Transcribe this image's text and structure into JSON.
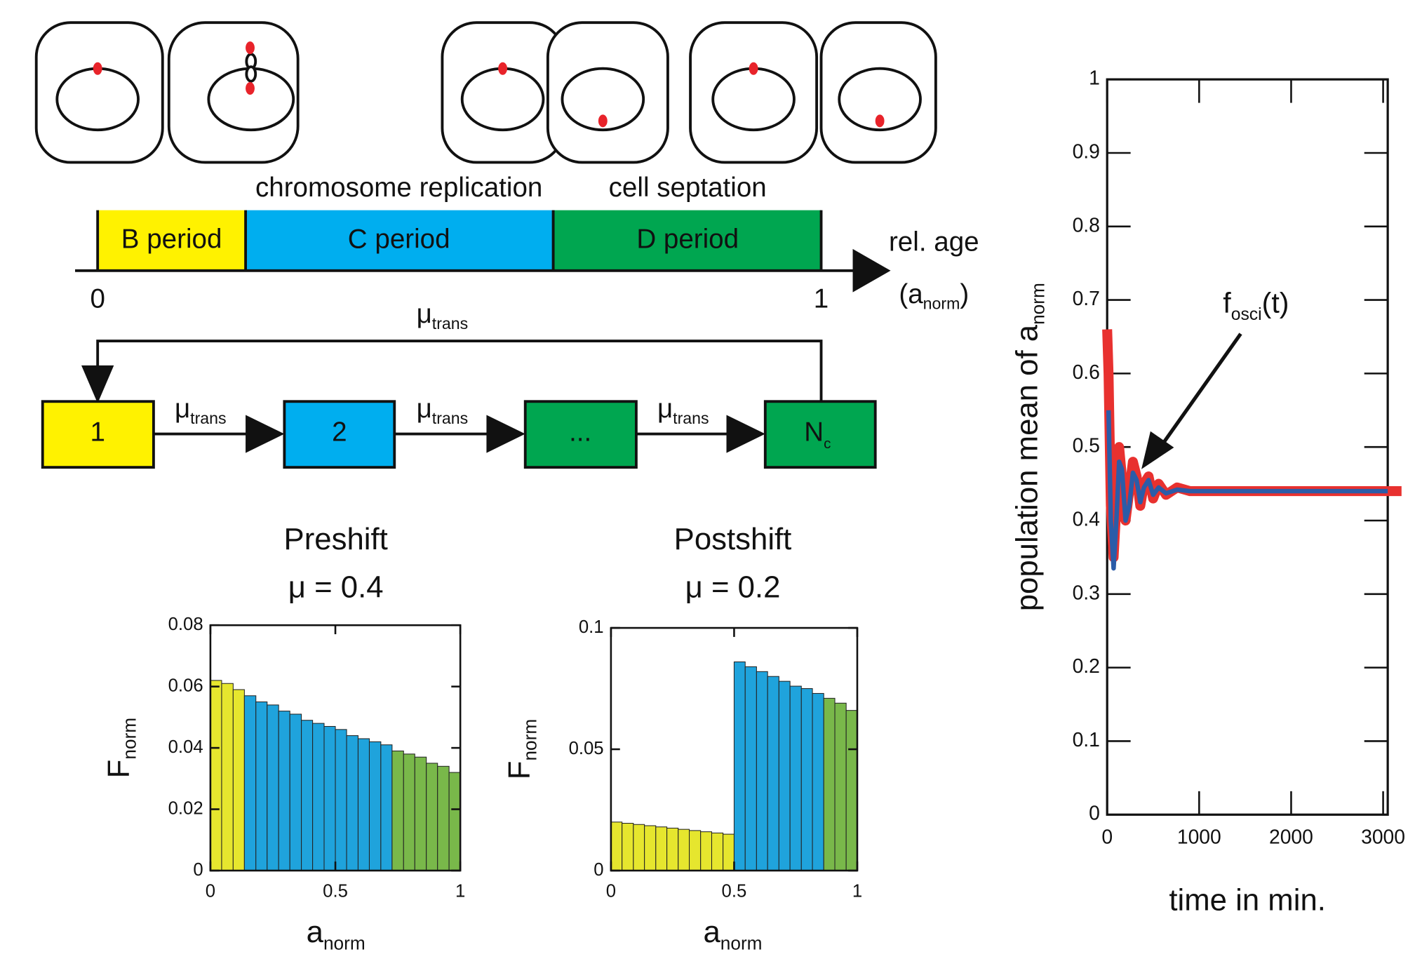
{
  "diagram": {
    "cycle_labels": [
      "chromosome replication",
      "cell septation"
    ],
    "periods": [
      "B period",
      "C period",
      "D period"
    ],
    "age_start": "0",
    "age_end": "1",
    "age_label": {
      "text": "rel. age",
      "open": "(a",
      "sub": "norm",
      "close": ")"
    },
    "transition": {
      "symbol": "μ",
      "sub": "trans"
    },
    "stages": [
      {
        "label": "1"
      },
      {
        "label": "2"
      },
      {
        "label": "..."
      },
      {
        "label": "N",
        "sub": "c"
      }
    ]
  },
  "chart_data": [
    {
      "type": "histogram",
      "title": "Preshift",
      "subtitle": "μ = 0.4",
      "xlabel": {
        "text": "a",
        "sub": "norm"
      },
      "ylabel": {
        "text": "F",
        "sub": "norm"
      },
      "bins": [
        0,
        0.045,
        0.091,
        0.136,
        0.182,
        0.227,
        0.273,
        0.318,
        0.364,
        0.409,
        0.455,
        0.5,
        0.545,
        0.591,
        0.636,
        0.682,
        0.727,
        0.773,
        0.818,
        0.864,
        0.909,
        0.955,
        1
      ],
      "values": [
        0.062,
        0.061,
        0.059,
        0.057,
        0.055,
        0.054,
        0.052,
        0.051,
        0.049,
        0.048,
        0.047,
        0.046,
        0.044,
        0.043,
        0.042,
        0.041,
        0.039,
        0.038,
        0.037,
        0.035,
        0.034,
        0.032
      ],
      "colors": [
        "#e6e62e",
        "#e6e62e",
        "#e6e62e",
        "#1fa3dc",
        "#1fa3dc",
        "#1fa3dc",
        "#1fa3dc",
        "#1fa3dc",
        "#1fa3dc",
        "#1fa3dc",
        "#1fa3dc",
        "#1fa3dc",
        "#1fa3dc",
        "#1fa3dc",
        "#1fa3dc",
        "#1fa3dc",
        "#79b84a",
        "#79b84a",
        "#79b84a",
        "#79b84a",
        "#79b84a",
        "#79b84a"
      ],
      "xlim": [
        0,
        1
      ],
      "xticks": [
        0,
        0.5,
        1
      ],
      "ylim": [
        0,
        0.08
      ],
      "yticks": [
        0,
        0.02,
        0.04,
        0.06,
        0.08
      ]
    },
    {
      "type": "histogram",
      "title": "Postshift",
      "subtitle": "μ = 0.2",
      "xlabel": {
        "text": "a",
        "sub": "norm"
      },
      "ylabel": {
        "text": "F",
        "sub": "norm"
      },
      "bins": [
        0,
        0.045,
        0.091,
        0.136,
        0.182,
        0.227,
        0.273,
        0.318,
        0.364,
        0.409,
        0.455,
        0.5,
        0.545,
        0.591,
        0.636,
        0.682,
        0.727,
        0.773,
        0.818,
        0.864,
        0.909,
        0.955,
        1
      ],
      "values": [
        0.02,
        0.0195,
        0.019,
        0.0185,
        0.018,
        0.0175,
        0.017,
        0.0165,
        0.016,
        0.0155,
        0.015,
        0.086,
        0.084,
        0.082,
        0.08,
        0.078,
        0.076,
        0.075,
        0.073,
        0.071,
        0.069,
        0.066
      ],
      "colors": [
        "#e6e62e",
        "#e6e62e",
        "#e6e62e",
        "#e6e62e",
        "#e6e62e",
        "#e6e62e",
        "#e6e62e",
        "#e6e62e",
        "#e6e62e",
        "#e6e62e",
        "#e6e62e",
        "#1fa3dc",
        "#1fa3dc",
        "#1fa3dc",
        "#1fa3dc",
        "#1fa3dc",
        "#1fa3dc",
        "#1fa3dc",
        "#1fa3dc",
        "#79b84a",
        "#79b84a",
        "#79b84a"
      ],
      "xlim": [
        0,
        1
      ],
      "xticks": [
        0,
        0.5,
        1
      ],
      "ylim": [
        0,
        0.1
      ],
      "yticks": [
        0,
        0.05,
        0.1
      ]
    },
    {
      "type": "line",
      "xlabel": "time in min.",
      "ylabel": {
        "text": "population mean of a",
        "sub": "norm"
      },
      "annotation": {
        "text": "f",
        "sub": "osci",
        "suffix": "(t)"
      },
      "x": [
        0,
        15,
        40,
        70,
        100,
        130,
        160,
        200,
        240,
        280,
        320,
        360,
        400,
        450,
        500,
        560,
        640,
        760,
        900,
        1100,
        1500,
        2000,
        2600,
        3050,
        3200
      ],
      "series": [
        {
          "color": "#e8312f",
          "values": [
            0.66,
            0.6,
            0.42,
            0.35,
            0.42,
            0.5,
            0.46,
            0.4,
            0.44,
            0.48,
            0.46,
            0.42,
            0.45,
            0.46,
            0.43,
            0.45,
            0.435,
            0.445,
            0.44,
            0.44,
            0.44,
            0.44,
            0.44,
            0.44,
            0.44
          ]
        },
        {
          "color": "#2b5ca8",
          "values": [
            null,
            0.55,
            0.4,
            0.335,
            0.4,
            0.48,
            0.47,
            0.4,
            0.42,
            0.465,
            0.455,
            0.425,
            0.445,
            0.455,
            0.435,
            0.445,
            0.437,
            0.442,
            0.44,
            0.44,
            0.44,
            0.44,
            0.44,
            0.44,
            null
          ]
        }
      ],
      "xlim": [
        0,
        3050
      ],
      "xticks": [
        0,
        1000,
        2000,
        3000
      ],
      "ylim": [
        0,
        1
      ],
      "yticks": [
        0,
        0.1,
        0.2,
        0.3,
        0.4,
        0.5,
        0.6,
        0.7,
        0.8,
        0.9,
        1
      ]
    }
  ]
}
